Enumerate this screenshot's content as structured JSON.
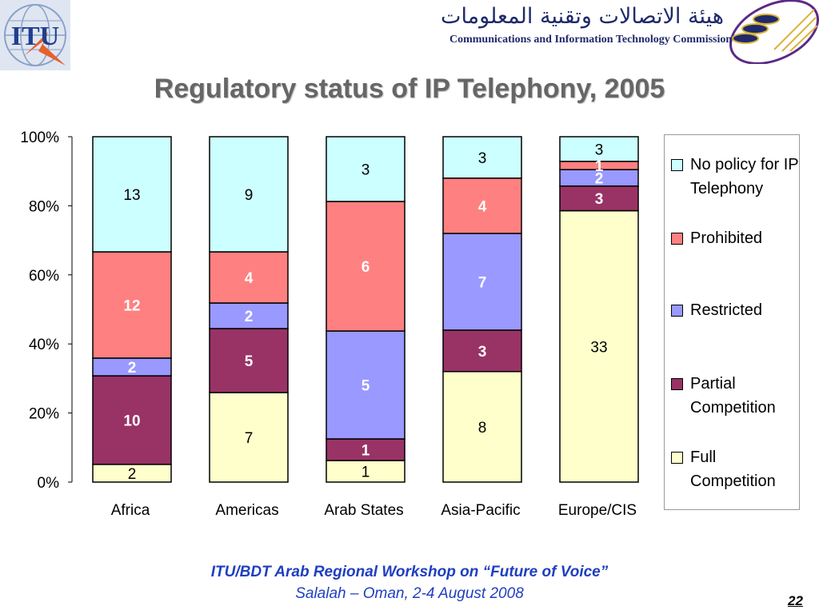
{
  "header": {
    "itu_logo_text": "ITU",
    "commission_name_en": "Communications and Information Technology Commission",
    "commission_name_ar": "هيئة الاتصالات وتقنية المعلومات"
  },
  "colors": {
    "full_competition": "#ffffcc",
    "partial_competition": "#993366",
    "restricted": "#9999ff",
    "prohibited": "#ff8080",
    "no_policy": "#ccffff",
    "title": "#666666",
    "footer": "#1f3fbf"
  },
  "chart_data": {
    "type": "bar",
    "stacked": "percent",
    "title": "Regulatory status of IP Telephony, 2005",
    "categories": [
      "Africa",
      "Americas",
      "Arab States",
      "Asia-Pacific",
      "Europe/CIS"
    ],
    "series": [
      {
        "name": "Full Competition",
        "color": "#ffffcc",
        "label_color": "#000000",
        "bold": false,
        "values": [
          2,
          7,
          1,
          8,
          33
        ]
      },
      {
        "name": "Partial Competition",
        "color": "#993366",
        "label_color": "#ffffff",
        "bold": true,
        "values": [
          10,
          5,
          1,
          3,
          3
        ]
      },
      {
        "name": "Restricted",
        "color": "#9999ff",
        "label_color": "#ffffff",
        "bold": true,
        "values": [
          2,
          2,
          5,
          7,
          2
        ]
      },
      {
        "name": "Prohibited",
        "color": "#ff8080",
        "label_color": "#ffffff",
        "bold": true,
        "values": [
          12,
          4,
          6,
          4,
          1
        ]
      },
      {
        "name": "No policy for IP Telephony",
        "color": "#ccffff",
        "label_color": "#000000",
        "bold": false,
        "values": [
          13,
          9,
          3,
          3,
          3
        ]
      }
    ],
    "y_ticks": [
      "0%",
      "20%",
      "40%",
      "60%",
      "80%",
      "100%"
    ],
    "ylim": [
      0,
      100
    ],
    "grid": false,
    "legend_position": "right"
  },
  "footer": {
    "line1": "ITU/BDT Arab Regional Workshop on “Future of Voice”",
    "line2": "Salalah – Oman, 2-4 August 2008",
    "page_number": "22"
  }
}
